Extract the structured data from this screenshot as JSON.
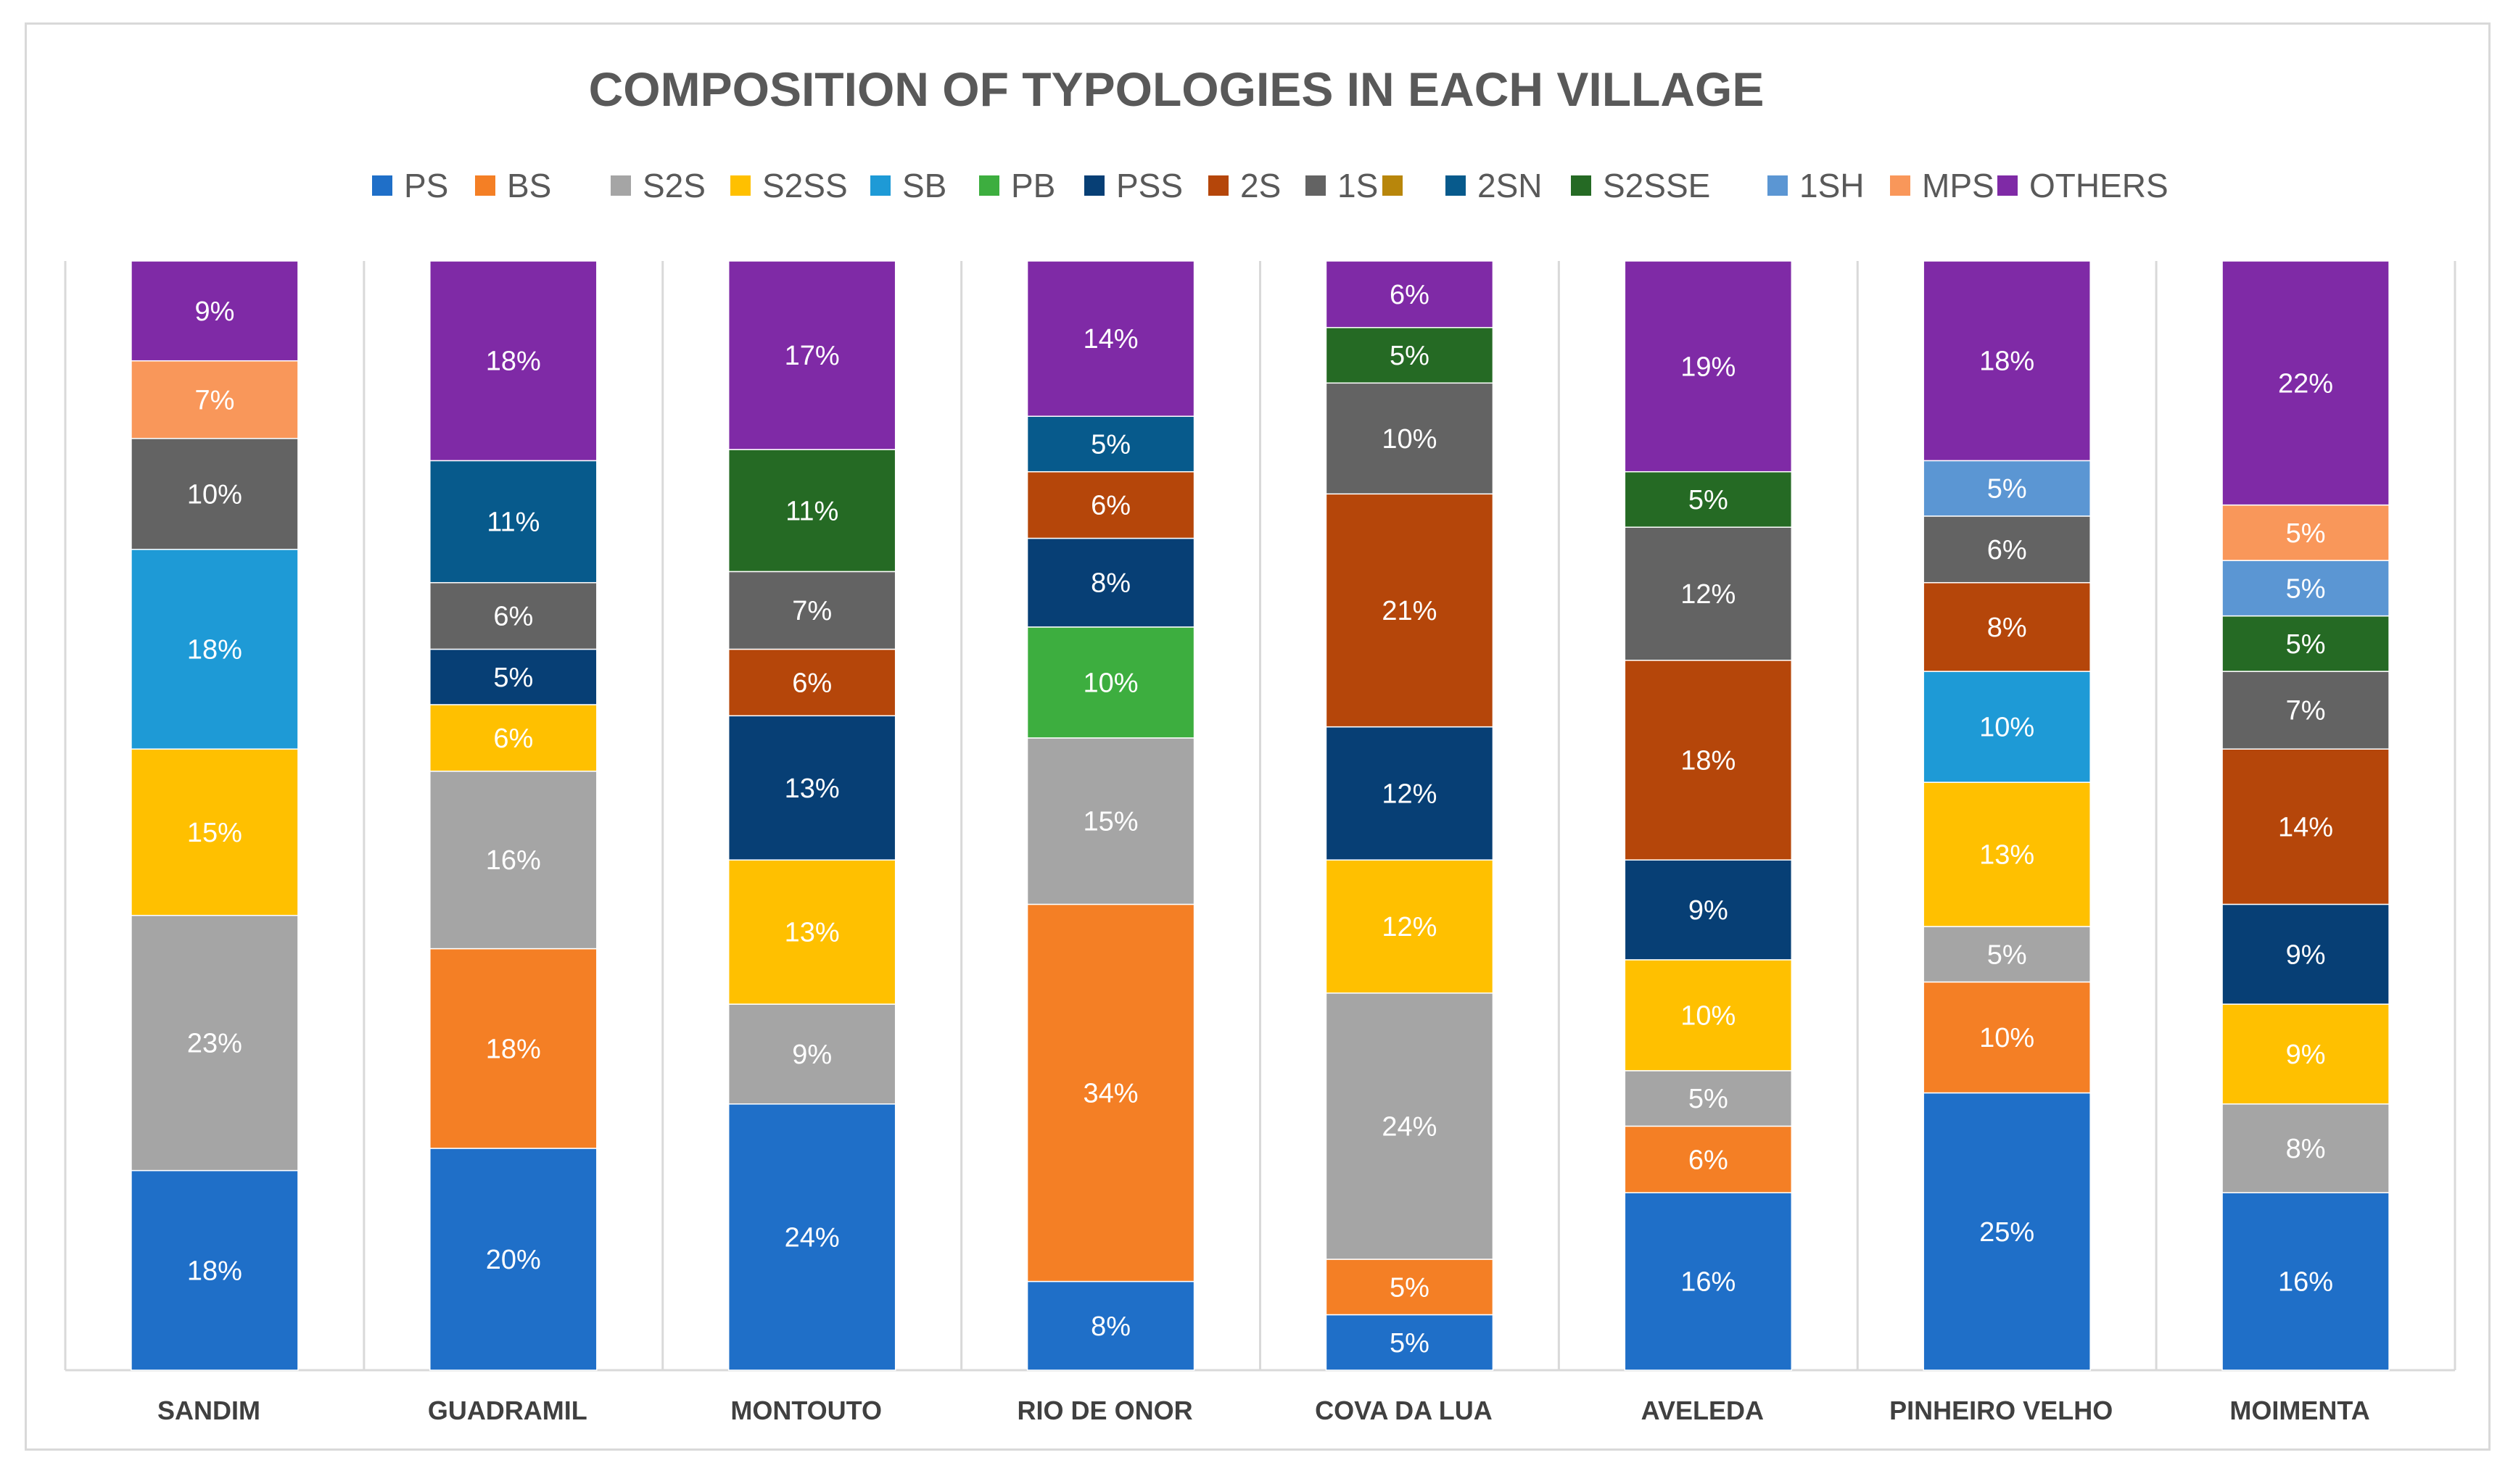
{
  "chart_data": {
    "type": "bar",
    "stacked": true,
    "title": "COMPOSITION OF TYPOLOGIES IN EACH VILLAGE",
    "xlabel": "",
    "ylabel": "",
    "ylim": [
      0,
      100
    ],
    "grid": false,
    "legend_position": "top",
    "categories": [
      "SANDIM",
      "GUADRAMIL",
      "MONTOUTO",
      "RIO DE ONOR",
      "COVA DA LUA",
      "AVELEDA",
      "PINHEIRO VELHO",
      "MOIMENTA"
    ],
    "series": [
      {
        "name": "PS",
        "color": "#1f6fc8",
        "values": [
          18,
          20,
          24,
          8,
          5,
          16,
          25,
          16
        ]
      },
      {
        "name": "BS",
        "color": "#f47f25",
        "values": [
          0,
          18,
          0,
          34,
          5,
          6,
          10,
          0
        ]
      },
      {
        "name": "S2S",
        "color": "#a5a5a5",
        "values": [
          23,
          16,
          9,
          15,
          24,
          5,
          5,
          8
        ]
      },
      {
        "name": "S2SS",
        "color": "#ffc000",
        "values": [
          15,
          6,
          13,
          0,
          12,
          10,
          13,
          9
        ]
      },
      {
        "name": "SB",
        "color": "#1e9ad6",
        "values": [
          18,
          0,
          0,
          0,
          0,
          0,
          10,
          0
        ]
      },
      {
        "name": "PB",
        "color": "#3dae3f",
        "values": [
          0,
          0,
          0,
          10,
          0,
          0,
          0,
          0
        ]
      },
      {
        "name": "PSS",
        "color": "#073f75",
        "values": [
          0,
          5,
          13,
          8,
          12,
          9,
          0,
          9
        ]
      },
      {
        "name": "2S",
        "color": "#b5460a",
        "values": [
          0,
          0,
          6,
          6,
          21,
          18,
          8,
          14
        ]
      },
      {
        "name": "1S",
        "color": "#636363",
        "values": [
          10,
          6,
          7,
          0,
          10,
          12,
          6,
          7
        ]
      },
      {
        "name": "",
        "color": "#b8860b",
        "values": [
          0,
          0,
          0,
          0,
          0,
          0,
          0,
          0
        ]
      },
      {
        "name": "2SN",
        "color": "#075a8c",
        "values": [
          0,
          11,
          0,
          5,
          0,
          0,
          0,
          0
        ]
      },
      {
        "name": "S2SSE",
        "color": "#256a24",
        "values": [
          0,
          0,
          11,
          0,
          5,
          5,
          0,
          5
        ]
      },
      {
        "name": "1SH",
        "color": "#5b96d3",
        "values": [
          0,
          0,
          0,
          0,
          0,
          0,
          5,
          5
        ]
      },
      {
        "name": "MPS",
        "color": "#f9975a",
        "values": [
          7,
          0,
          0,
          0,
          0,
          0,
          0,
          5
        ]
      },
      {
        "name": "OTHERS",
        "color": "#7f2aa6",
        "values": [
          9,
          18,
          17,
          14,
          6,
          19,
          18,
          22
        ]
      }
    ]
  }
}
